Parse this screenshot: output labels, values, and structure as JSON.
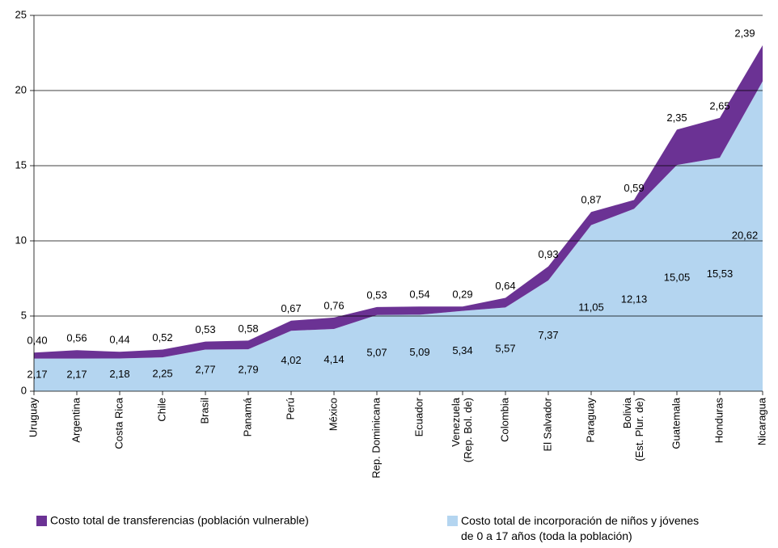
{
  "chart_data": {
    "type": "stacked-area",
    "categories": [
      "Uruguay",
      "Argentina",
      "Costa Rica",
      "Chile",
      "Brasil",
      "Panamá",
      "Perú",
      "México",
      "Rep. Dominicana",
      "Ecuador",
      "Venezuela (Rep. Bol. de)",
      "Colombia",
      "El Salvador",
      "Paraguay",
      "Bolivia (Est. Plur. de)",
      "Guatemala",
      "Honduras",
      "Nicaragua"
    ],
    "series": [
      {
        "name": "Costo total de incorporación de niños y jóvenes de 0 a 17 años (toda la población)",
        "color": "#b4d5f0",
        "values": [
          2.17,
          2.17,
          2.18,
          2.25,
          2.77,
          2.79,
          4.02,
          4.14,
          5.07,
          5.09,
          5.34,
          5.57,
          7.37,
          11.05,
          12.13,
          15.05,
          15.53,
          20.62
        ],
        "value_labels": [
          "2,17",
          "2,17",
          "2,18",
          "2,25",
          "2,77",
          "2,79",
          "4,02",
          "4,14",
          "5,07",
          "5,09",
          "5,34",
          "5,57",
          "7,37",
          "11,05",
          "12,13",
          "15,05",
          "15,53",
          "20,62"
        ]
      },
      {
        "name": "Costo total de transferencias (población vulnerable)",
        "color": "#6b3294",
        "values": [
          0.4,
          0.56,
          0.44,
          0.52,
          0.53,
          0.58,
          0.67,
          0.76,
          0.53,
          0.54,
          0.29,
          0.64,
          0.93,
          0.87,
          0.59,
          2.35,
          2.65,
          2.39
        ],
        "value_labels": [
          "0,40",
          "0,56",
          "0,44",
          "0,52",
          "0,53",
          "0,58",
          "0,67",
          "0,76",
          "0,53",
          "0,54",
          "0,29",
          "0,64",
          "0,93",
          "0,87",
          "0,59",
          "2,35",
          "2,65",
          "2,39"
        ]
      }
    ],
    "ylim": [
      0,
      25
    ],
    "yticks": [
      0,
      5,
      10,
      15,
      20,
      25
    ],
    "grid": true
  }
}
